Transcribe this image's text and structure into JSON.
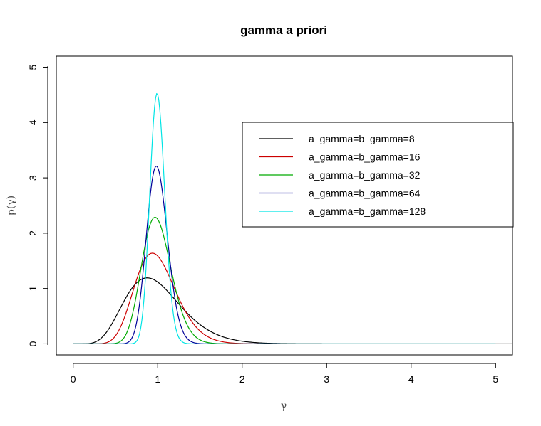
{
  "chart_data": {
    "type": "line",
    "title": "gamma a priori",
    "xlabel": "γ",
    "ylabel": "p(γ)",
    "xlim": [
      -0.2,
      5.2
    ],
    "ylim": [
      -0.2,
      5.2
    ],
    "x_ticks": [
      0,
      1,
      2,
      3,
      4,
      5
    ],
    "y_ticks": [
      0,
      1,
      2,
      3,
      4,
      5
    ],
    "grid": false,
    "legend_position": "top-right",
    "series": [
      {
        "name": "a_gamma=b_gamma=8",
        "color": "#000000",
        "shape": 8,
        "rate": 8,
        "x": [
          0,
          0.1,
          0.2,
          0.3,
          0.4,
          0.5,
          0.6,
          0.7,
          0.8,
          0.9,
          1.0,
          1.1,
          1.2,
          1.3,
          1.4,
          1.5,
          1.6,
          1.7,
          1.8,
          1.9,
          2.0,
          2.2,
          2.4,
          2.6,
          2.8,
          3.0,
          3.5,
          4.0,
          4.5,
          5.0,
          5.2
        ],
        "y": [
          0,
          0.0,
          0.0,
          0.06,
          0.2,
          0.45,
          0.73,
          0.97,
          1.13,
          1.19,
          1.17,
          1.08,
          0.95,
          0.8,
          0.65,
          0.51,
          0.39,
          0.29,
          0.21,
          0.15,
          0.1,
          0.05,
          0.02,
          0.01,
          0.0,
          0.0,
          0.0,
          0.0,
          0.0,
          0.0,
          0.0
        ]
      },
      {
        "name": "a_gamma=b_gamma=16",
        "color": "#cc0000",
        "shape": 16,
        "rate": 16,
        "x": [
          0,
          0.3,
          0.4,
          0.5,
          0.6,
          0.7,
          0.8,
          0.9,
          1.0,
          1.1,
          1.2,
          1.3,
          1.4,
          1.5,
          1.6,
          1.7,
          1.8,
          1.9,
          2.0,
          2.2
        ],
        "y": [
          0,
          0.0,
          0.02,
          0.12,
          0.42,
          0.88,
          1.35,
          1.62,
          1.59,
          1.32,
          0.97,
          0.63,
          0.37,
          0.2,
          0.1,
          0.05,
          0.02,
          0.01,
          0.0,
          0.0
        ]
      },
      {
        "name": "a_gamma=b_gamma=32",
        "color": "#00aa00",
        "shape": 32,
        "rate": 32,
        "x": [
          0,
          0.4,
          0.5,
          0.6,
          0.7,
          0.8,
          0.9,
          1.0,
          1.1,
          1.2,
          1.3,
          1.4,
          1.5,
          1.6,
          1.7,
          1.8,
          2.0
        ],
        "y": [
          0,
          0.0,
          0.01,
          0.13,
          0.6,
          1.42,
          2.13,
          2.26,
          1.83,
          1.16,
          0.6,
          0.26,
          0.1,
          0.03,
          0.01,
          0.0,
          0.0
        ]
      },
      {
        "name": "a_gamma=b_gamma=64",
        "color": "#000099",
        "shape": 64,
        "rate": 64,
        "x": [
          0,
          0.5,
          0.6,
          0.7,
          0.8,
          0.9,
          1.0,
          1.1,
          1.2,
          1.3,
          1.4,
          1.5,
          1.6,
          2.45
        ],
        "y": [
          0,
          0.0,
          0.01,
          0.17,
          1.05,
          2.52,
          3.18,
          2.35,
          1.09,
          0.35,
          0.08,
          0.01,
          0.0,
          0.0
        ]
      },
      {
        "name": "a_gamma=b_gamma=128",
        "color": "#00e5e5",
        "shape": 128,
        "rate": 128,
        "x": [
          0,
          0.6,
          0.7,
          0.8,
          0.9,
          1.0,
          1.1,
          1.2,
          1.3,
          1.4,
          5.0
        ],
        "y": [
          0,
          0.0,
          0.03,
          0.56,
          2.9,
          4.5,
          2.7,
          0.71,
          0.1,
          0.0,
          0.0
        ]
      }
    ]
  }
}
